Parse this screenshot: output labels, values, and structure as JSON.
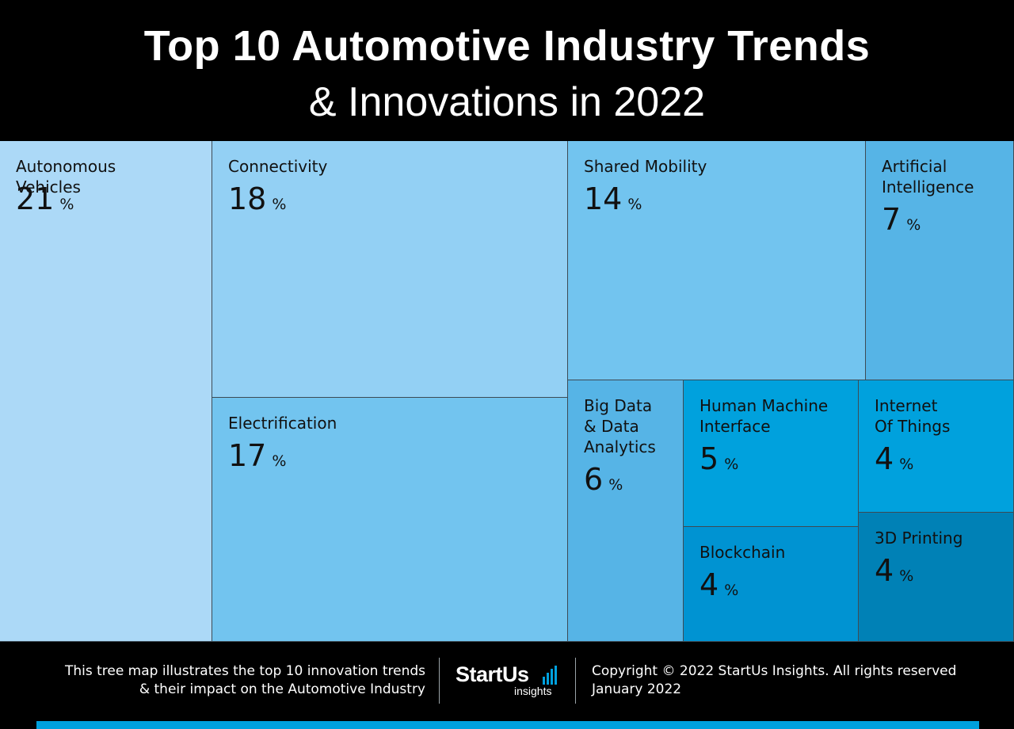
{
  "header": {
    "title_line1": "Top 10 Automotive Industry Trends",
    "title_line2": "& Innovations in 2022"
  },
  "chart_data": {
    "type": "treemap",
    "unit": "%",
    "items": [
      {
        "name": "Autonomous Vehicles",
        "value": 21,
        "color": "#acd9f7"
      },
      {
        "name": "Connectivity",
        "value": 18,
        "color": "#93d0f4"
      },
      {
        "name": "Electrification",
        "value": 17,
        "color": "#72c4ef"
      },
      {
        "name": "Shared Mobility",
        "value": 14,
        "color": "#72c4ef"
      },
      {
        "name": "Artificial Intelligence",
        "value": 7,
        "color": "#56b4e6"
      },
      {
        "name": "Big Data & Data Analytics",
        "value": 6,
        "color": "#56b4e6"
      },
      {
        "name": "Human Machine Interface",
        "value": 5,
        "color": "#00a1dd"
      },
      {
        "name": "Internet Of Things",
        "value": 4,
        "color": "#00a1dd"
      },
      {
        "name": "Blockchain",
        "value": 4,
        "color": "#0093d2"
      },
      {
        "name": "3D Printing",
        "value": 4,
        "color": "#0081b6"
      }
    ]
  },
  "footer": {
    "caption": "This tree map illustrates the top 10 innovation trends\n& their impact on the Automotive Industry",
    "logo_word": "StartUs",
    "logo_sub": "insights",
    "copyright": "Copyright © 2022 StartUs Insights. All rights reserved\nJanuary 2022",
    "accent_color": "#00a0dd"
  }
}
